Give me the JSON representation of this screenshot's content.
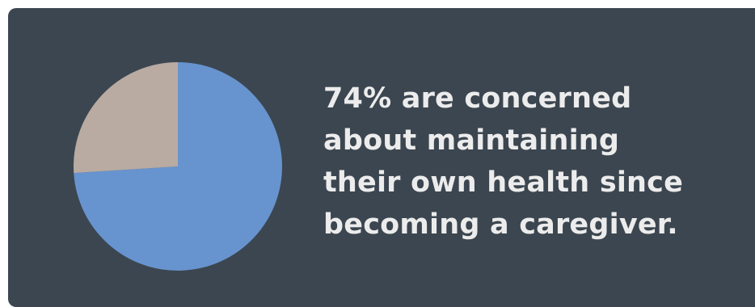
{
  "colors": {
    "background": "#3c4650",
    "text": "#ececec",
    "slice_primary": "#6794cf",
    "slice_secondary": "#b9aba2"
  },
  "headline": {
    "lines": [
      "74% are concerned",
      "about maintaining",
      "their own health since",
      "becoming a caregiver."
    ]
  },
  "chart_data": {
    "type": "pie",
    "title": "",
    "slices": [
      {
        "label": "",
        "value": 74,
        "color": "#6794cf"
      },
      {
        "label": "",
        "value": 26,
        "color": "#b9aba2"
      }
    ]
  }
}
